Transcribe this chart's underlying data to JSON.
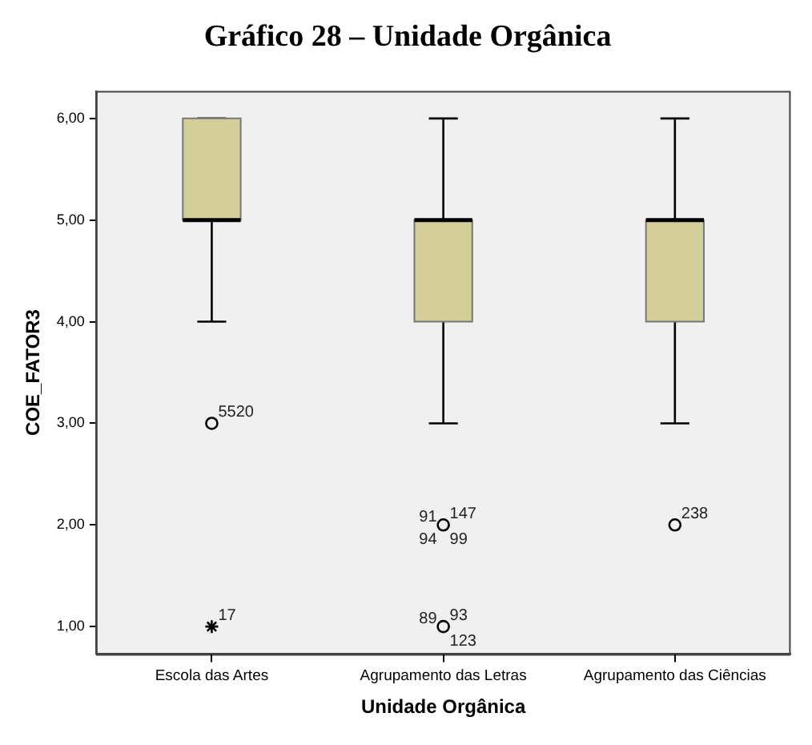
{
  "chart_data": {
    "type": "box",
    "title": "Gráfico 28 – Unidade Orgânica",
    "xlabel": "Unidade Orgânica",
    "ylabel": "COE_FATOR3",
    "categories": [
      "Escola das Artes",
      "Agrupamento das Letras",
      "Agrupamento das Ciências"
    ],
    "series": [
      {
        "type": "box",
        "color": "#d3ce97",
        "boxes": [
          {
            "low": 4,
            "q1": 5,
            "median": 5,
            "q3": 6,
            "high": 6
          },
          {
            "low": 3,
            "q1": 4,
            "median": 5,
            "q3": 5,
            "high": 6
          },
          {
            "low": 3,
            "q1": 4,
            "median": 5,
            "q3": 5,
            "high": 6
          }
        ]
      },
      {
        "type": "scatter",
        "marker": "circle",
        "color": "#000000",
        "x": [
          "Escola das Artes",
          "Agrupamento das Letras",
          "Agrupamento das Letras",
          "Agrupamento das Ciências"
        ],
        "values": [
          3,
          2,
          1,
          2
        ]
      },
      {
        "type": "scatter",
        "marker": "cross",
        "color": "#000000",
        "x": [
          "Escola das Artes"
        ],
        "values": [
          1
        ]
      }
    ],
    "ylim": [
      0.73,
      6.27
    ],
    "yticks": [
      {
        "value": 1,
        "label": "1,00"
      },
      {
        "value": 2,
        "label": "2,00"
      },
      {
        "value": 3,
        "label": "3,00"
      },
      {
        "value": 4,
        "label": "4,00"
      },
      {
        "value": 5,
        "label": "5,00"
      },
      {
        "value": 6,
        "label": "6,00"
      }
    ],
    "grid": false,
    "legend": false,
    "annotations": [
      {
        "text": "5520",
        "x": "Escola das Artes",
        "y": 3
      },
      {
        "text": "17",
        "x": "Escola das Artes",
        "y": 1
      },
      {
        "text": "147",
        "x": "Agrupamento das Letras",
        "y": 2
      },
      {
        "text": "91",
        "x": "Agrupamento das Letras",
        "y": 2
      },
      {
        "text": "99",
        "x": "Agrupamento das Letras",
        "y": 2
      },
      {
        "text": "94",
        "x": "Agrupamento das Letras",
        "y": 2
      },
      {
        "text": "93",
        "x": "Agrupamento das Letras",
        "y": 1
      },
      {
        "text": "89",
        "x": "Agrupamento das Letras",
        "y": 1
      },
      {
        "text": "123",
        "x": "Agrupamento das Letras",
        "y": 1
      },
      {
        "text": "238",
        "x": "Agrupamento das Ciências",
        "y": 2
      }
    ]
  }
}
